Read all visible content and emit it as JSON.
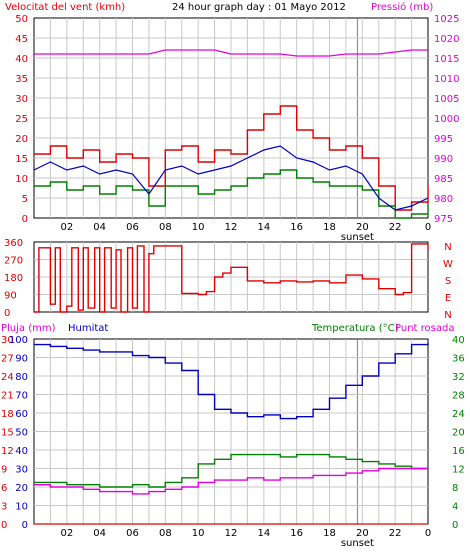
{
  "colors": {
    "frame": "#000000",
    "grid": "#c8c8c8",
    "wind": "#e00000",
    "gust": "#e00000",
    "avg": "#0000c0",
    "low": "#008000",
    "pressure": "#e000e0",
    "dir": "#e00000",
    "humidity": "#0000c0",
    "temperature": "#008000",
    "dew": "#e000e0",
    "rain": "#e00000",
    "sunset": "#808080"
  },
  "header": {
    "wind_label": "Velocitat del vent (kmh)",
    "title": "24 hour graph day : 01 Mayo 2012",
    "pressure_label": "Pressió (mb)"
  },
  "x_ticks": [
    "02",
    "04",
    "06",
    "08",
    "10",
    "12",
    "14",
    "16",
    "18",
    "20",
    "22",
    "0"
  ],
  "sunset_label": "sunset",
  "chart_data": [
    {
      "type": "line",
      "name": "wind-pressure",
      "x_hours": [
        0,
        1,
        2,
        3,
        4,
        5,
        6,
        7,
        8,
        9,
        10,
        11,
        12,
        13,
        14,
        15,
        16,
        17,
        18,
        19,
        20,
        21,
        22,
        23,
        24
      ],
      "series": [
        {
          "key": "gust",
          "values": [
            16,
            18,
            15,
            17,
            14,
            16,
            15,
            8,
            17,
            18,
            14,
            17,
            16,
            22,
            26,
            28,
            22,
            20,
            17,
            18,
            15,
            8,
            2,
            4,
            8
          ]
        },
        {
          "key": "avg",
          "values": [
            12,
            14,
            12,
            13,
            11,
            12,
            11,
            6,
            12,
            13,
            11,
            12,
            13,
            15,
            17,
            18,
            15,
            14,
            12,
            13,
            11,
            5,
            2,
            3,
            5
          ]
        },
        {
          "key": "low",
          "values": [
            8,
            9,
            7,
            8,
            6,
            8,
            7,
            3,
            8,
            8,
            6,
            7,
            8,
            10,
            11,
            12,
            10,
            9,
            8,
            8,
            7,
            3,
            0,
            1,
            3
          ]
        },
        {
          "key": "pressure",
          "values": [
            1016,
            1016,
            1016,
            1016,
            1016,
            1016,
            1016,
            1016,
            1017,
            1017,
            1017,
            1017,
            1016,
            1016,
            1016,
            1016,
            1015.5,
            1015.5,
            1015.5,
            1016,
            1016,
            1016,
            1016.5,
            1017,
            1017
          ]
        }
      ],
      "ylim_wind": [
        0,
        50
      ],
      "wind_ticks": [
        "0",
        "5",
        "10",
        "15",
        "20",
        "25",
        "30",
        "35",
        "40",
        "45",
        "50"
      ],
      "ylim_pressure": [
        975,
        1025
      ],
      "pressure_ticks": [
        "975",
        "980",
        "985",
        "990",
        "995",
        "1000",
        "1005",
        "1010",
        "1015",
        "1020",
        "1025"
      ]
    },
    {
      "type": "line",
      "name": "wind-direction",
      "x_hours": [
        0,
        0.3,
        0.6,
        1,
        1.3,
        1.6,
        2,
        2.3,
        2.7,
        3,
        3.3,
        3.7,
        4,
        4.3,
        4.7,
        5,
        5.3,
        5.7,
        6,
        6.3,
        6.7,
        7,
        7.3,
        7.7,
        8,
        9,
        10,
        10.5,
        11,
        11.5,
        12,
        13,
        14,
        15,
        16,
        17,
        18,
        19,
        20,
        21,
        22,
        22.5,
        23,
        24
      ],
      "values": [
        0,
        330,
        330,
        40,
        330,
        0,
        30,
        330,
        10,
        330,
        20,
        330,
        0,
        330,
        20,
        320,
        0,
        330,
        20,
        340,
        0,
        300,
        340,
        340,
        340,
        95,
        90,
        105,
        180,
        200,
        230,
        160,
        150,
        160,
        155,
        160,
        150,
        190,
        170,
        120,
        90,
        100,
        350,
        320
      ],
      "ylim": [
        0,
        360
      ],
      "y_ticks": [
        "0",
        "90",
        "180",
        "270",
        "360"
      ],
      "compass": [
        "N",
        "W",
        "S",
        "E",
        "N"
      ]
    },
    {
      "type": "line",
      "name": "humidity-temperature",
      "labels": {
        "rain": "Pluja (mm)",
        "humidity": "Humitat",
        "temperature": "Temperatura (°C)",
        "dew": "Punt rosada"
      },
      "x_hours": [
        0,
        1,
        2,
        3,
        4,
        5,
        6,
        7,
        8,
        9,
        10,
        11,
        12,
        13,
        14,
        15,
        16,
        17,
        18,
        19,
        20,
        21,
        22,
        23,
        24
      ],
      "series": [
        {
          "key": "humidity",
          "values": [
            97,
            96,
            95,
            94,
            93,
            93,
            91,
            90,
            87,
            83,
            70,
            62,
            60,
            58,
            59,
            57,
            58,
            62,
            68,
            75,
            80,
            87,
            92,
            97,
            98
          ]
        },
        {
          "key": "temperature",
          "values": [
            9,
            9,
            8.5,
            8.5,
            8,
            8,
            8.5,
            8,
            9,
            10,
            13,
            14,
            15,
            15,
            15,
            14.5,
            15,
            15,
            14.5,
            14,
            13.5,
            13,
            12.5,
            12,
            12
          ]
        },
        {
          "key": "dew",
          "values": [
            8.5,
            8,
            8,
            7.5,
            7,
            7,
            6.5,
            7,
            7.5,
            8,
            9,
            9.5,
            9.5,
            10,
            9.5,
            10,
            10,
            10.5,
            10.5,
            11,
            11.5,
            12,
            12,
            12,
            12
          ]
        },
        {
          "key": "rain",
          "values": [
            0,
            0,
            0,
            0,
            0,
            0,
            0,
            0,
            0,
            0,
            0,
            0,
            0,
            0,
            0,
            0,
            0,
            0,
            0,
            0,
            0,
            0,
            0,
            0,
            0
          ]
        }
      ],
      "rain_ticks": [
        "0",
        "3",
        "6",
        "9",
        "12",
        "15",
        "18",
        "21",
        "24",
        "27",
        "30"
      ],
      "humidity_ticks": [
        "0",
        "10",
        "20",
        "30",
        "40",
        "50",
        "60",
        "70",
        "80",
        "90",
        "100"
      ],
      "temp_ticks": [
        "0",
        "4",
        "8",
        "12",
        "16",
        "20",
        "24",
        "28",
        "32",
        "36",
        "40"
      ],
      "ylim_humidity": [
        0,
        100
      ],
      "ylim_temperature": [
        0,
        40
      ],
      "ylim_rain": [
        0,
        30
      ]
    }
  ]
}
